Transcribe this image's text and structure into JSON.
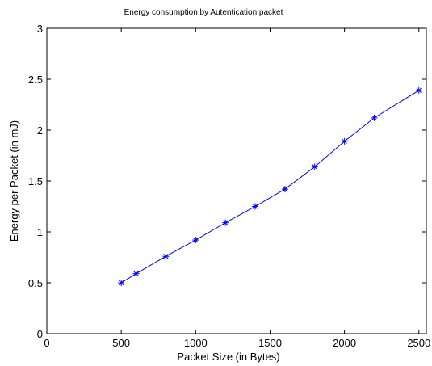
{
  "chart_data": {
    "type": "line",
    "title": "Energy consumption by Autentication packet",
    "xlabel": "Packet Size (in Bytes)",
    "ylabel": "Energy per Packet (in mJ)",
    "xlim": [
      0,
      2550
    ],
    "ylim": [
      0,
      3
    ],
    "xticks": [
      0,
      500,
      1000,
      1500,
      2000,
      2500
    ],
    "yticks": [
      0,
      0.5,
      1,
      1.5,
      2,
      2.5,
      3
    ],
    "xtick_labels": [
      "0",
      "500",
      "1000",
      "1500",
      "2000",
      "2500"
    ],
    "ytick_labels": [
      "0",
      "0.5",
      "1",
      "1.5",
      "2",
      "2.5",
      "3"
    ],
    "grid": false,
    "series": [
      {
        "color": "#0000ff",
        "marker": "asterisk",
        "x": [
          500,
          600,
          800,
          1000,
          1200,
          1400,
          1600,
          1800,
          2000,
          2200,
          2500
        ],
        "y": [
          0.5,
          0.59,
          0.76,
          0.92,
          1.09,
          1.25,
          1.42,
          1.64,
          1.89,
          2.12,
          2.39
        ]
      }
    ]
  }
}
